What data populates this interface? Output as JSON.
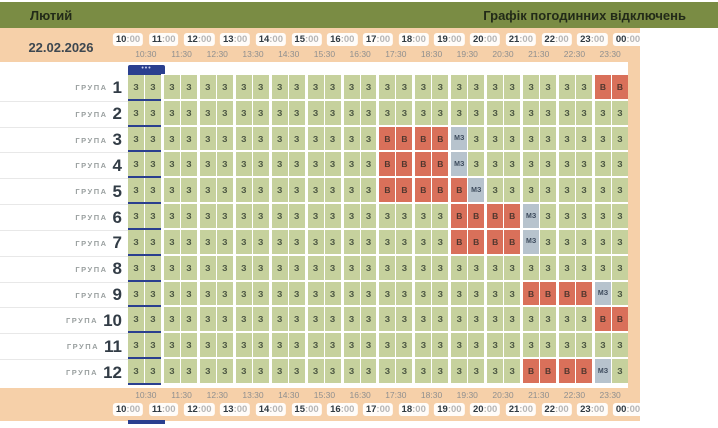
{
  "header": {
    "month": "Лютий",
    "title": "Графік погодинних відключень"
  },
  "date": "22.02.2026",
  "current_indicator": {
    "dots": "•••"
  },
  "timescale": {
    "hours": [
      "10:00",
      "11:00",
      "12:00",
      "13:00",
      "14:00",
      "15:00",
      "16:00",
      "17:00",
      "18:00",
      "19:00",
      "20:00",
      "21:00",
      "22:00",
      "23:00",
      "00:00"
    ],
    "half_hours": [
      "10:30",
      "11:30",
      "12:30",
      "13:30",
      "14:30",
      "15:30",
      "16:30",
      "17:30",
      "18:30",
      "19:30",
      "20:30",
      "21:30",
      "22:30",
      "23:30"
    ]
  },
  "statuses": {
    "available": {
      "code": "З",
      "bg": "#c6d19d"
    },
    "outage": {
      "code": "В",
      "bg": "#d9705a"
    },
    "possible": {
      "code": "МЗ",
      "bg": "#b7c3cd"
    }
  },
  "colors": {
    "header_green": "#7a8c44",
    "peach": "#f6d0a9",
    "navy": "#2a3f8f",
    "available": "#c6d19d",
    "outage": "#d9705a",
    "possible": "#b7c3cd"
  },
  "groups": [
    {
      "name": "ГРУПА",
      "number": "1",
      "slots": [
        "З",
        "З",
        "З",
        "З",
        "З",
        "З",
        "З",
        "З",
        "З",
        "З",
        "З",
        "З",
        "З",
        "З",
        "З",
        "З",
        "З",
        "З",
        "З",
        "З",
        "З",
        "З",
        "З",
        "З",
        "З",
        "З",
        "В",
        "В"
      ]
    },
    {
      "name": "ГРУПА",
      "number": "2",
      "slots": [
        "З",
        "З",
        "З",
        "З",
        "З",
        "З",
        "З",
        "З",
        "З",
        "З",
        "З",
        "З",
        "З",
        "З",
        "З",
        "З",
        "З",
        "З",
        "З",
        "З",
        "З",
        "З",
        "З",
        "З",
        "З",
        "З",
        "З",
        "З"
      ]
    },
    {
      "name": "ГРУПА",
      "number": "3",
      "slots": [
        "З",
        "З",
        "З",
        "З",
        "З",
        "З",
        "З",
        "З",
        "З",
        "З",
        "З",
        "З",
        "З",
        "З",
        "В",
        "В",
        "В",
        "В",
        "МЗ",
        "З",
        "З",
        "З",
        "З",
        "З",
        "З",
        "З",
        "З",
        "З"
      ]
    },
    {
      "name": "ГРУПА",
      "number": "4",
      "slots": [
        "З",
        "З",
        "З",
        "З",
        "З",
        "З",
        "З",
        "З",
        "З",
        "З",
        "З",
        "З",
        "З",
        "З",
        "В",
        "В",
        "В",
        "В",
        "МЗ",
        "З",
        "З",
        "З",
        "З",
        "З",
        "З",
        "З",
        "З",
        "З"
      ]
    },
    {
      "name": "ГРУПА",
      "number": "5",
      "slots": [
        "З",
        "З",
        "З",
        "З",
        "З",
        "З",
        "З",
        "З",
        "З",
        "З",
        "З",
        "З",
        "З",
        "З",
        "В",
        "В",
        "В",
        "В",
        "В",
        "МЗ",
        "З",
        "З",
        "З",
        "З",
        "З",
        "З",
        "З",
        "З"
      ]
    },
    {
      "name": "ГРУПА",
      "number": "6",
      "slots": [
        "З",
        "З",
        "З",
        "З",
        "З",
        "З",
        "З",
        "З",
        "З",
        "З",
        "З",
        "З",
        "З",
        "З",
        "З",
        "З",
        "З",
        "З",
        "В",
        "В",
        "В",
        "В",
        "МЗ",
        "З",
        "З",
        "З",
        "З",
        "З"
      ]
    },
    {
      "name": "ГРУПА",
      "number": "7",
      "slots": [
        "З",
        "З",
        "З",
        "З",
        "З",
        "З",
        "З",
        "З",
        "З",
        "З",
        "З",
        "З",
        "З",
        "З",
        "З",
        "З",
        "З",
        "З",
        "В",
        "В",
        "В",
        "В",
        "МЗ",
        "З",
        "З",
        "З",
        "З",
        "З"
      ]
    },
    {
      "name": "ГРУПА",
      "number": "8",
      "slots": [
        "З",
        "З",
        "З",
        "З",
        "З",
        "З",
        "З",
        "З",
        "З",
        "З",
        "З",
        "З",
        "З",
        "З",
        "З",
        "З",
        "З",
        "З",
        "З",
        "З",
        "З",
        "З",
        "З",
        "З",
        "З",
        "З",
        "З",
        "З"
      ]
    },
    {
      "name": "ГРУПА",
      "number": "9",
      "slots": [
        "З",
        "З",
        "З",
        "З",
        "З",
        "З",
        "З",
        "З",
        "З",
        "З",
        "З",
        "З",
        "З",
        "З",
        "З",
        "З",
        "З",
        "З",
        "З",
        "З",
        "З",
        "З",
        "В",
        "В",
        "В",
        "В",
        "МЗ",
        "З"
      ]
    },
    {
      "name": "ГРУПА",
      "number": "10",
      "slots": [
        "З",
        "З",
        "З",
        "З",
        "З",
        "З",
        "З",
        "З",
        "З",
        "З",
        "З",
        "З",
        "З",
        "З",
        "З",
        "З",
        "З",
        "З",
        "З",
        "З",
        "З",
        "З",
        "З",
        "З",
        "З",
        "З",
        "В",
        "В"
      ]
    },
    {
      "name": "ГРУПА",
      "number": "11",
      "slots": [
        "З",
        "З",
        "З",
        "З",
        "З",
        "З",
        "З",
        "З",
        "З",
        "З",
        "З",
        "З",
        "З",
        "З",
        "З",
        "З",
        "З",
        "З",
        "З",
        "З",
        "З",
        "З",
        "З",
        "З",
        "З",
        "З",
        "З",
        "З"
      ]
    },
    {
      "name": "ГРУПА",
      "number": "12",
      "slots": [
        "З",
        "З",
        "З",
        "З",
        "З",
        "З",
        "З",
        "З",
        "З",
        "З",
        "З",
        "З",
        "З",
        "З",
        "З",
        "З",
        "З",
        "З",
        "З",
        "З",
        "З",
        "З",
        "В",
        "В",
        "В",
        "В",
        "МЗ",
        "З"
      ]
    }
  ]
}
